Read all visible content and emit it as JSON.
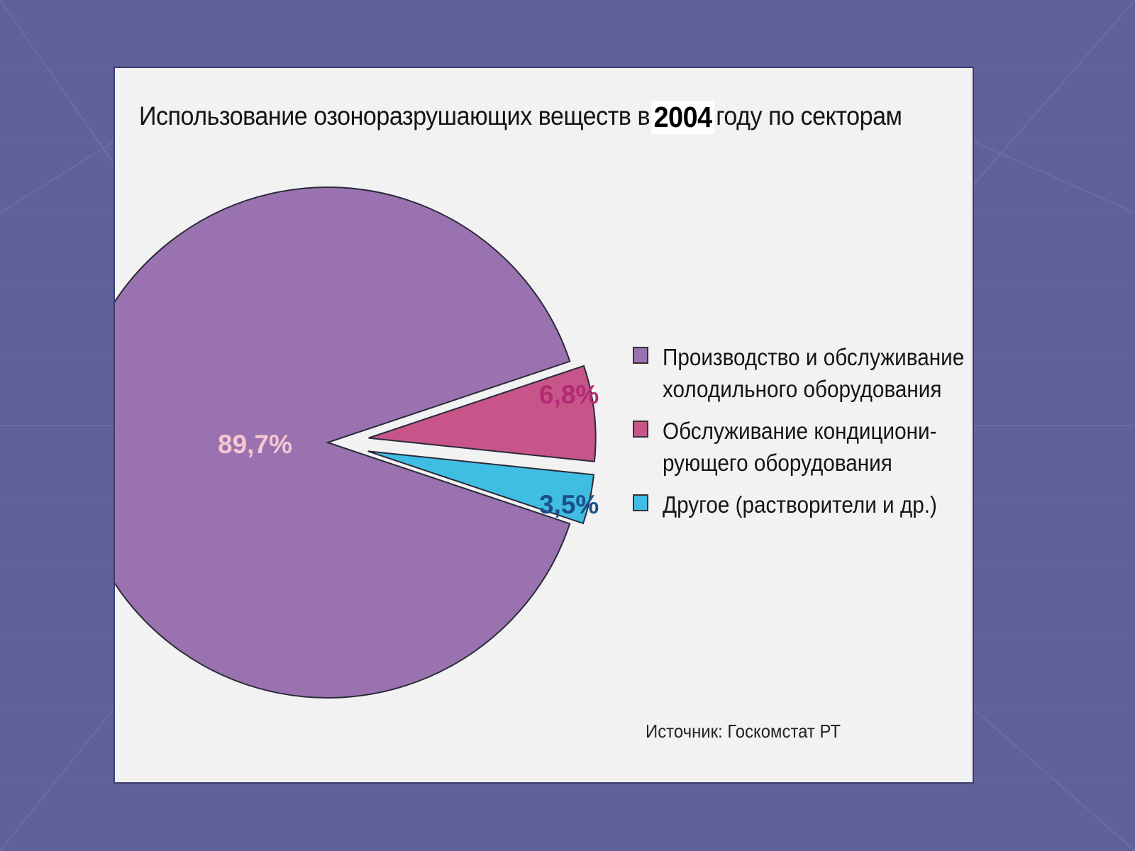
{
  "chart_data": {
    "type": "pie",
    "title_prefix": "Использование озоноразрушающих веществ в",
    "title_year": "2004",
    "title_suffix": "году по секторам",
    "slices": [
      {
        "name": "Производство и обслуживание\nхолодильного оборудования",
        "value": 89.7,
        "label": "89,7%",
        "color": "#9b72b0",
        "label_color": "#f6c6d2",
        "exploded": false
      },
      {
        "name": "Обслуживание кондициони-\nрующего оборудования",
        "value": 6.8,
        "label": "6,8%",
        "color": "#c8558a",
        "label_color": "#b32a72",
        "exploded": true
      },
      {
        "name": "Другое (растворители и др.)",
        "value": 3.5,
        "label": "3,5%",
        "color": "#3fbde2",
        "label_color": "#1a4f86",
        "exploded": true
      }
    ],
    "legend_position": "right",
    "source": "Источник: Госкомстат РТ"
  }
}
